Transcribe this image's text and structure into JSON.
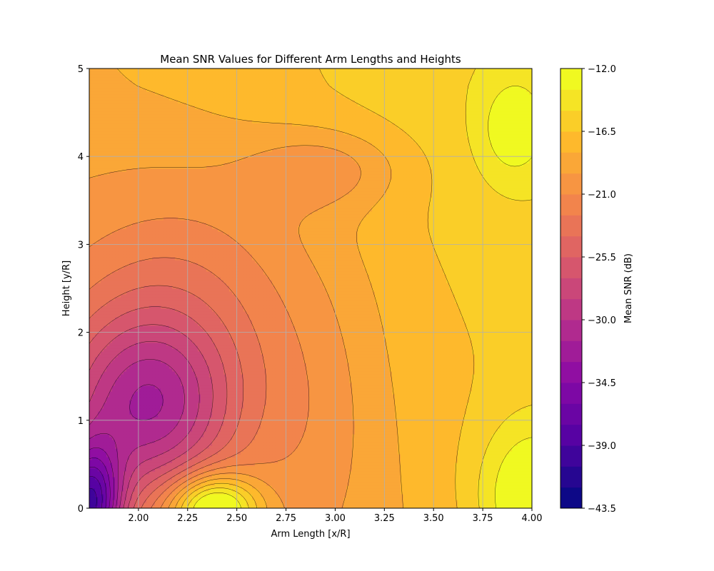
{
  "chart_data": {
    "type": "contour",
    "title": "Mean SNR Values for Different Arm Lengths and Heights",
    "xlabel": "Arm Length [x/R]",
    "ylabel": "Height [y/R]",
    "colorbar_label": "Mean SNR (dB)",
    "xlim": [
      1.75,
      4.0
    ],
    "ylim": [
      0,
      5
    ],
    "x_ticks": [
      "2.00",
      "2.25",
      "2.50",
      "2.75",
      "3.00",
      "3.25",
      "3.50",
      "3.75",
      "4.00"
    ],
    "y_ticks": [
      "0",
      "1",
      "2",
      "3",
      "4",
      "5"
    ],
    "colorbar_ticks": [
      "−43.5",
      "−39.0",
      "−34.5",
      "−30.0",
      "−25.5",
      "−21.0",
      "−16.5",
      "−12.0"
    ],
    "colorbar_range": [
      -43.5,
      -12.0
    ],
    "levels": [
      -43.5,
      -42.0,
      -40.5,
      -39.0,
      -37.5,
      -36.0,
      -34.5,
      -33.0,
      -31.5,
      -30.0,
      -28.5,
      -27.0,
      -25.5,
      -24.0,
      -22.5,
      -21.0,
      -19.5,
      -18.0,
      -16.5,
      -15.0,
      -13.5,
      -12.0
    ],
    "colormap": "plasma",
    "grid": true,
    "z_features": [
      {
        "x": 1.75,
        "y": 0.0,
        "z": -43.0
      },
      {
        "x": 2.05,
        "y": 1.15,
        "z": -29.5
      },
      {
        "x": 2.35,
        "y": 0.15,
        "z": -13.0
      },
      {
        "x": 2.95,
        "y": 3.85,
        "z": -21.5
      },
      {
        "x": 4.0,
        "y": 0.2,
        "z": -14.0
      }
    ]
  }
}
